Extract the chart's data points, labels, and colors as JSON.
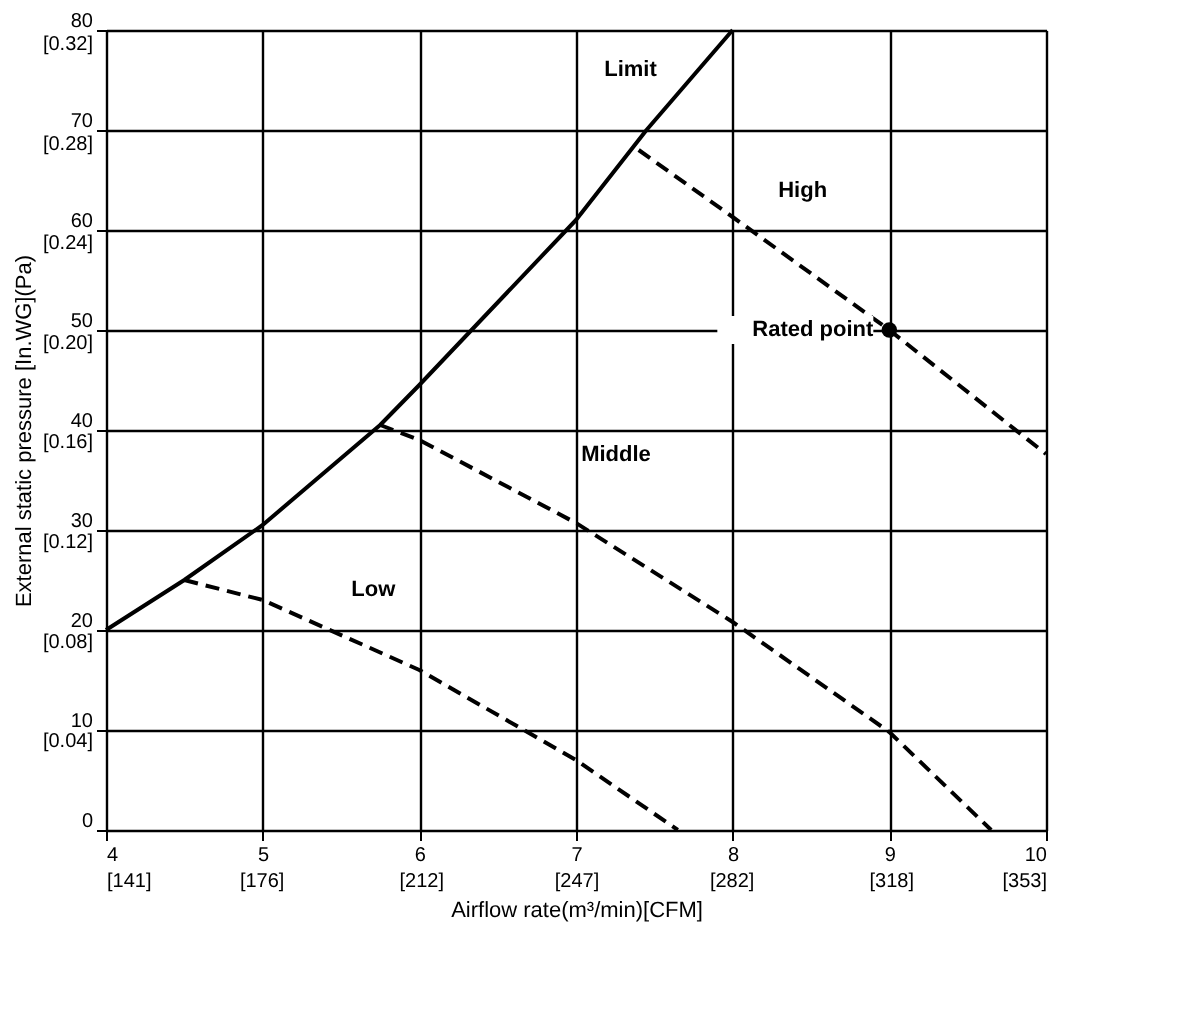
{
  "chart_data": {
    "type": "line",
    "xlabel": "Airflow rate(m³/min)[CFM]",
    "y2label": "External static pressure  [In.WG](Pa)",
    "xlim": [
      4,
      10
    ],
    "ylim": [
      0,
      80
    ],
    "xticks": [
      4,
      5,
      6,
      7,
      8,
      9,
      10
    ],
    "yticks": [
      0,
      10,
      20,
      30,
      40,
      50,
      60,
      70,
      80
    ],
    "x2lim": [
      141,
      353
    ],
    "x2ticks": [
      {
        "value": 141,
        "label": "[141]"
      },
      {
        "value": 176,
        "label": "[176]"
      },
      {
        "value": 212,
        "label": "[212]"
      },
      {
        "value": 247,
        "label": "[247]"
      },
      {
        "value": 282,
        "label": "[282]"
      },
      {
        "value": 318,
        "label": "[318]"
      },
      {
        "value": 353,
        "label": "[353]"
      }
    ],
    "y2lim": [
      0,
      0.3212
    ],
    "y2ticks": [
      {
        "value": 0.04,
        "label": "[0.04]"
      },
      {
        "value": 0.08,
        "label": "[0.08]"
      },
      {
        "value": 0.12,
        "label": "[0.12]"
      },
      {
        "value": 0.16,
        "label": "[0.16]"
      },
      {
        "value": 0.2,
        "label": "[0.20]"
      },
      {
        "value": 0.24,
        "label": "[0.24]"
      },
      {
        "value": 0.28,
        "label": "[0.28]"
      },
      {
        "value": 0.32,
        "label": "[0.32]"
      }
    ],
    "grid": true,
    "marker": "none",
    "series": [
      {
        "name": "Limit",
        "color": "#000000",
        "line_style": "solid",
        "x": [
          4,
          4.5,
          5,
          5.75,
          6,
          7,
          7.45,
          8
        ],
        "values": [
          20,
          25,
          30.5,
          40.5,
          44.5,
          61,
          70,
          80
        ]
      },
      {
        "name": "High",
        "color": "#000000",
        "line_style": "dashed",
        "x": [
          7.4,
          8,
          9,
          10
        ],
        "values": [
          68,
          61.3,
          50,
          37.6
        ]
      },
      {
        "name": "Middle",
        "color": "#000000",
        "line_style": "dashed",
        "x": [
          5.75,
          6,
          7,
          8,
          9,
          9.65
        ],
        "values": [
          40.5,
          39,
          30.7,
          20.8,
          9.8,
          0
        ]
      },
      {
        "name": "Low",
        "color": "#000000",
        "line_style": "dashed",
        "x": [
          4.5,
          5,
          6,
          7,
          7.65
        ],
        "values": [
          25,
          23,
          16,
          7,
          0
        ]
      },
      {
        "type": "scatter",
        "marker": "circle",
        "color": "#000000",
        "x": [
          9
        ],
        "values": [
          50
        ]
      }
    ],
    "annotations": [
      {
        "text": "Rated point",
        "x": 9,
        "y": 50
      }
    ]
  }
}
